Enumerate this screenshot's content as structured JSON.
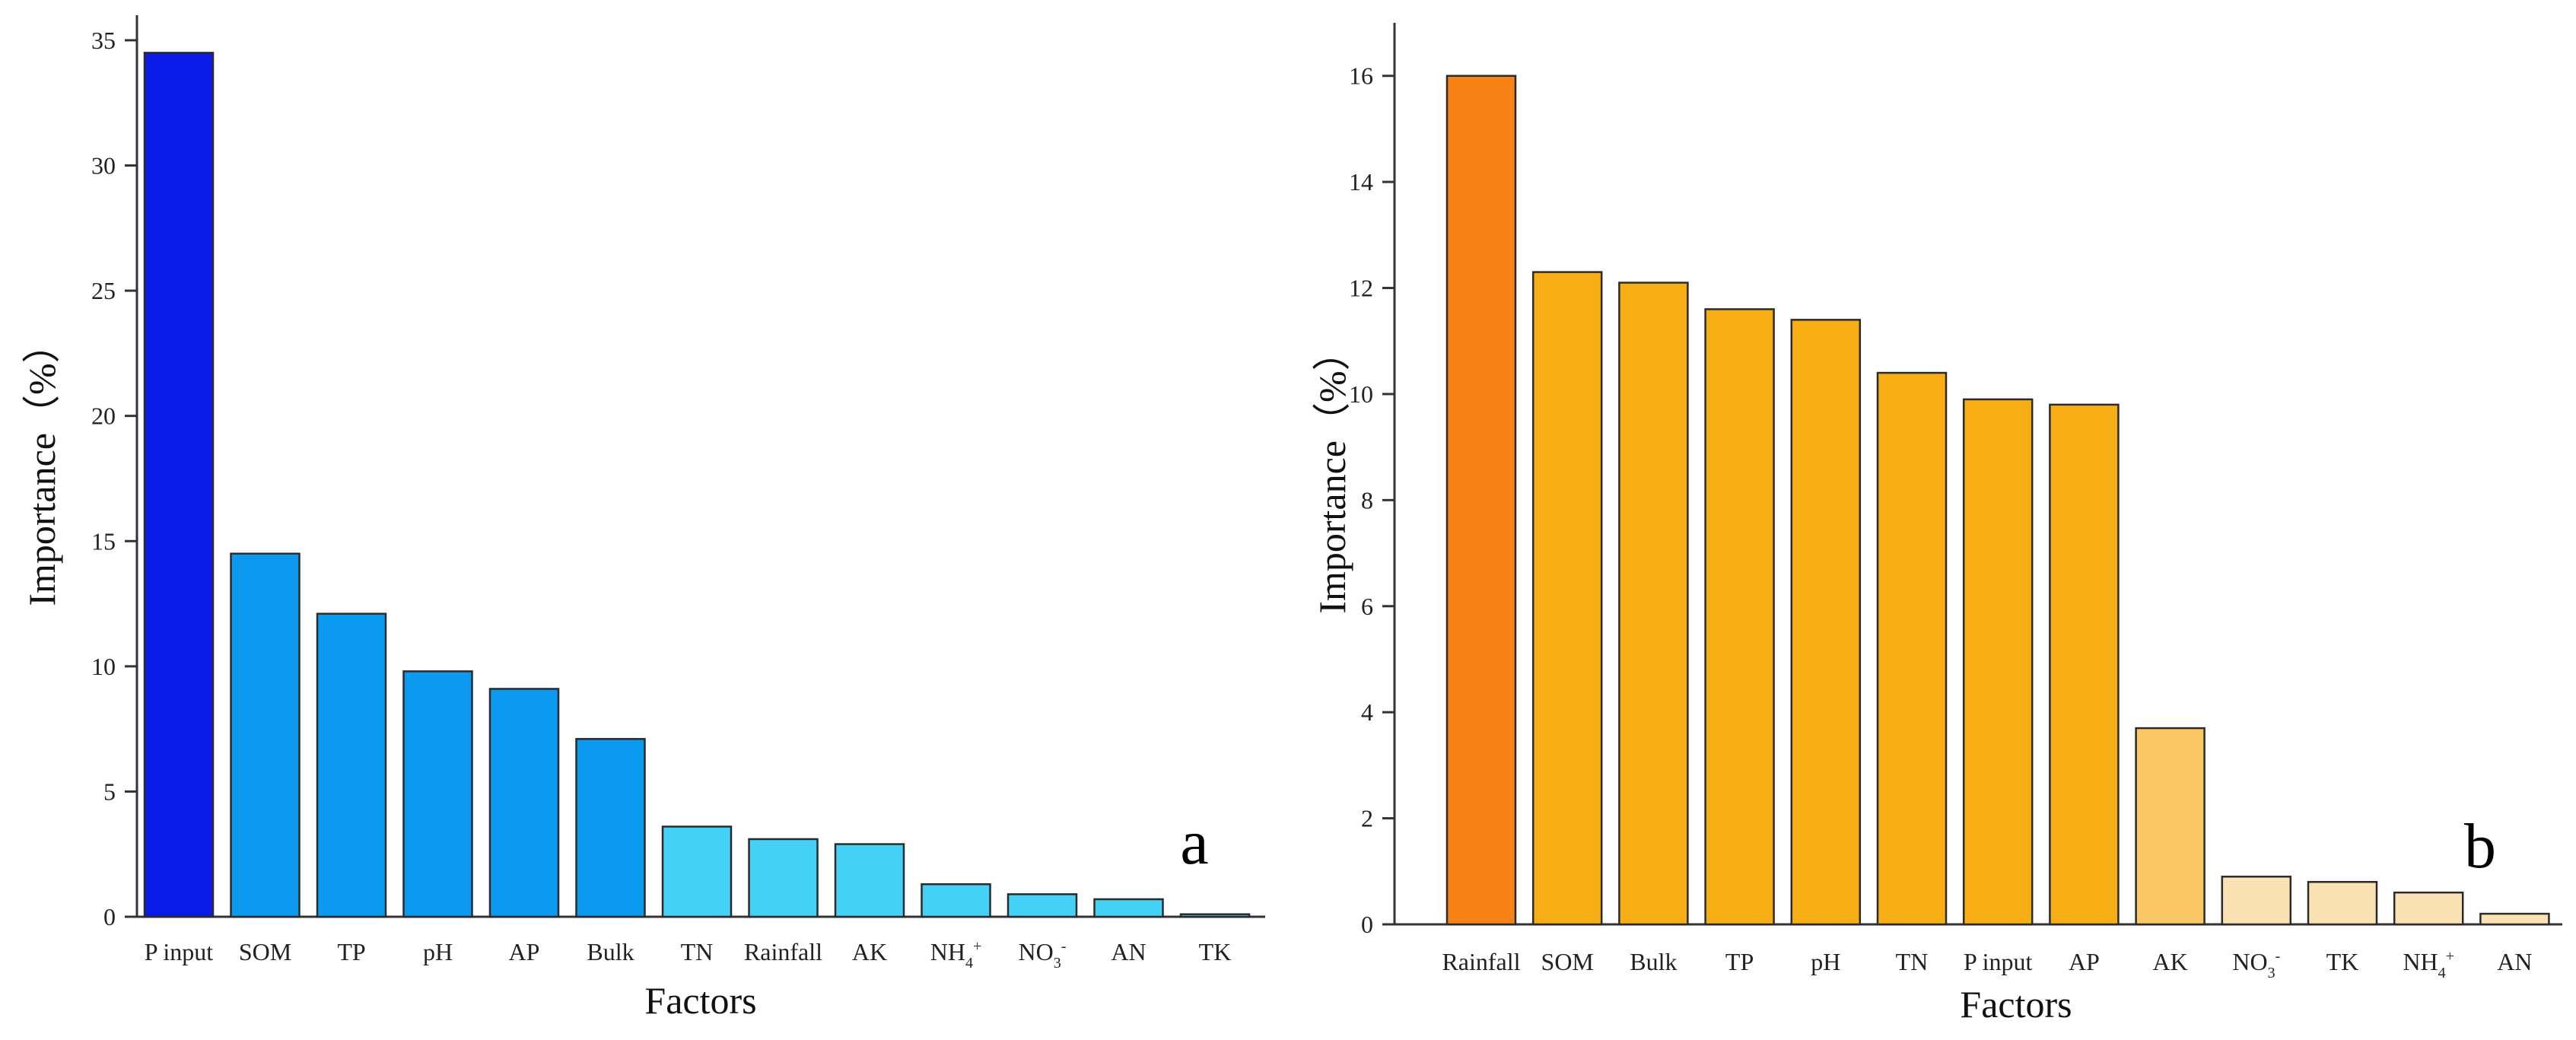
{
  "chart_data": [
    {
      "type": "bar",
      "panel_label": "a",
      "title": "",
      "xlabel": "Factors",
      "ylabel": "Importance（%）",
      "ylim": [
        0,
        36
      ],
      "yticks": [
        0,
        5,
        10,
        15,
        20,
        25,
        30,
        35
      ],
      "categories": [
        {
          "base": "P input",
          "sub": "",
          "sup": ""
        },
        {
          "base": "SOM",
          "sub": "",
          "sup": ""
        },
        {
          "base": "TP",
          "sub": "",
          "sup": ""
        },
        {
          "base": "pH",
          "sub": "",
          "sup": ""
        },
        {
          "base": "AP",
          "sub": "",
          "sup": ""
        },
        {
          "base": "Bulk",
          "sub": "",
          "sup": ""
        },
        {
          "base": "TN",
          "sub": "",
          "sup": ""
        },
        {
          "base": "Rainfall",
          "sub": "",
          "sup": ""
        },
        {
          "base": "AK",
          "sub": "",
          "sup": ""
        },
        {
          "base": "NH",
          "sub": "4",
          "sup": "+"
        },
        {
          "base": "NO",
          "sub": "3",
          "sup": "-"
        },
        {
          "base": "AN",
          "sub": "",
          "sup": ""
        },
        {
          "base": "TK",
          "sub": "",
          "sup": ""
        }
      ],
      "values": [
        34.5,
        14.5,
        12.1,
        9.8,
        9.1,
        7.1,
        3.6,
        3.1,
        2.9,
        1.3,
        0.9,
        0.7,
        0.1
      ],
      "colors": [
        "#0a1be8",
        "#0c99f0",
        "#0c99f0",
        "#0c99f0",
        "#0c99f0",
        "#0c99f0",
        "#45d0f6",
        "#45d0f6",
        "#45d0f6",
        "#45d0f6",
        "#45d0f6",
        "#45d0f6",
        "#45d0f6"
      ]
    },
    {
      "type": "bar",
      "panel_label": "b",
      "title": "",
      "xlabel": "Factors",
      "ylabel": "Importance（%）",
      "ylim": [
        0,
        17
      ],
      "yticks": [
        0,
        2,
        4,
        6,
        8,
        10,
        12,
        14,
        16
      ],
      "categories": [
        {
          "base": "Rainfall",
          "sub": "",
          "sup": ""
        },
        {
          "base": "SOM",
          "sub": "",
          "sup": ""
        },
        {
          "base": "Bulk",
          "sub": "",
          "sup": ""
        },
        {
          "base": "TP",
          "sub": "",
          "sup": ""
        },
        {
          "base": "pH",
          "sub": "",
          "sup": ""
        },
        {
          "base": "TN",
          "sub": "",
          "sup": ""
        },
        {
          "base": "P input",
          "sub": "",
          "sup": ""
        },
        {
          "base": "AP",
          "sub": "",
          "sup": ""
        },
        {
          "base": "AK",
          "sub": "",
          "sup": ""
        },
        {
          "base": "NO",
          "sub": "3",
          "sup": "-"
        },
        {
          "base": "TK",
          "sub": "",
          "sup": ""
        },
        {
          "base": "NH",
          "sub": "4",
          "sup": "+"
        },
        {
          "base": "AN",
          "sub": "",
          "sup": ""
        }
      ],
      "values": [
        16.0,
        12.3,
        12.1,
        11.6,
        11.4,
        10.4,
        9.9,
        9.8,
        3.7,
        0.9,
        0.8,
        0.6,
        0.2
      ],
      "colors": [
        "#f88216",
        "#f6ae14",
        "#f6ae14",
        "#f6ae14",
        "#f6ae14",
        "#f6ae14",
        "#f6ae14",
        "#f6ae14",
        "#f9c865",
        "#fbe2b4",
        "#fbe2b4",
        "#fbe2b4",
        "#fbe2b4"
      ]
    }
  ]
}
